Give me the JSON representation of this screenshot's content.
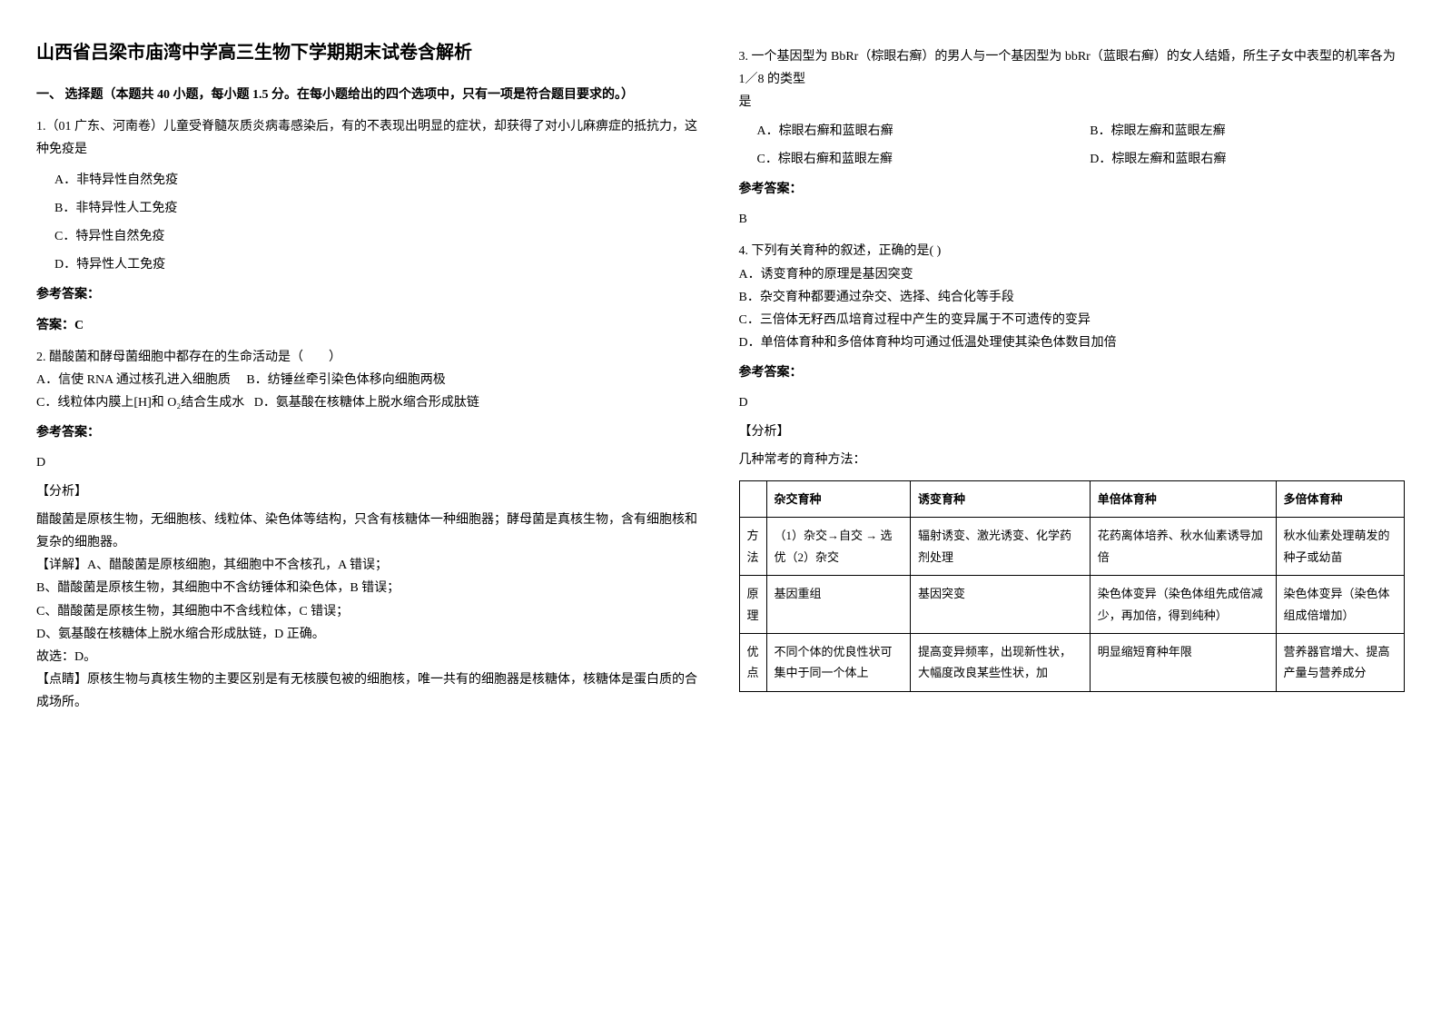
{
  "title": "山西省吕梁市庙湾中学高三生物下学期期末试卷含解析",
  "section1_title": "一、 选择题（本题共 40 小题，每小题 1.5 分。在每小题给出的四个选项中，只有一项是符合题目要求的。）",
  "q1": {
    "stem": "1.（01 广东、河南卷）儿童受脊髓灰质炎病毒感染后，有的不表现出明显的症状，却获得了对小儿麻痹症的抵抗力，这种免疫是",
    "optA": "A．非特异性自然免疫",
    "optB": "B．非特异性人工免疫",
    "optC": "C．特异性自然免疫",
    "optD": "D．特异性人工免疫",
    "answer_label": "参考答案：",
    "answer": "答案：C"
  },
  "q2": {
    "stem": "2. 醋酸菌和酵母菌细胞中都存在的生命活动是（　　）",
    "optA": "A．信使 RNA 通过核孔进入细胞质",
    "optB": "B．纺锤丝牵引染色体移向细胞两极",
    "optC": "C．线粒体内膜上[H]和 O₂结合生成水",
    "optD": "D．氨基酸在核糖体上脱水缩合形成肽链",
    "answer_label": "参考答案：",
    "answer": "D",
    "analysis_label": "【分析】",
    "analysis": "醋酸菌是原核生物，无细胞核、线粒体、染色体等结构，只含有核糖体一种细胞器；酵母菌是真核生物，含有细胞核和复杂的细胞器。",
    "detail_label": "【详解】A、醋酸菌是原核细胞，其细胞中不含核孔，A 错误；",
    "detailB": "B、醋酸菌是原核生物，其细胞中不含纺锤体和染色体，B 错误；",
    "detailC": "C、醋酸菌是原核生物，其细胞中不含线粒体，C 错误；",
    "detailD": "D、氨基酸在核糖体上脱水缩合形成肽链，D 正确。",
    "conclusion": "故选：D。",
    "point_label": "【点睛】原核生物与真核生物的主要区别是有无核膜包被的细胞核，唯一共有的细胞器是核糖体，核糖体是蛋白质的合成场所。"
  },
  "q3": {
    "stem": "3. 一个基因型为 BbRr（棕眼右癣）的男人与一个基因型为 bbRr（蓝眼右癣）的女人结婚，所生子女中表型的机率各为 1／8 的类型",
    "stem2": "是",
    "optA": "A．棕眼右癣和蓝眼右癣",
    "optB": "B．棕眼左癣和蓝眼左癣",
    "optC": "C．棕眼右癣和蓝眼左癣",
    "optD": "D．棕眼左癣和蓝眼右癣",
    "answer_label": "参考答案：",
    "answer": "B"
  },
  "q4": {
    "stem": "4. 下列有关育种的叙述，正确的是( )",
    "optA": "A．诱变育种的原理是基因突变",
    "optB": "B．杂交育种都要通过杂交、选择、纯合化等手段",
    "optC": "C．三倍体无籽西瓜培育过程中产生的变异属于不可遗传的变异",
    "optD": "D．单倍体育种和多倍体育种均可通过低温处理使其染色体数目加倍",
    "answer_label": "参考答案：",
    "answer": "D",
    "analysis_label": "【分析】",
    "analysis": "几种常考的育种方法："
  },
  "table": {
    "headers": [
      "",
      "杂交育种",
      "诱变育种",
      "单倍体育种",
      "多倍体育种"
    ],
    "row1_head": "方法",
    "row1": [
      "（1）杂交→自交 → 选 优（2）杂交",
      "辐射诱变、激光诱变、化学药剂处理",
      "花药离体培养、秋水仙素诱导加倍",
      "秋水仙素处理萌发的种子或幼苗"
    ],
    "row2_head": "原理",
    "row2": [
      "基因重组",
      "基因突变",
      "染色体变异（染色体组先成倍减少，再加倍，得到纯种）",
      "染色体变异（染色体组成倍增加）"
    ],
    "row3_head": "优点",
    "row3": [
      "不同个体的优良性状可集中于同一个体上",
      "提高变异频率，出现新性状，大幅度改良某些性状，加",
      "明显缩短育种年限",
      "营养器官增大、提高产量与营养成分"
    ]
  }
}
